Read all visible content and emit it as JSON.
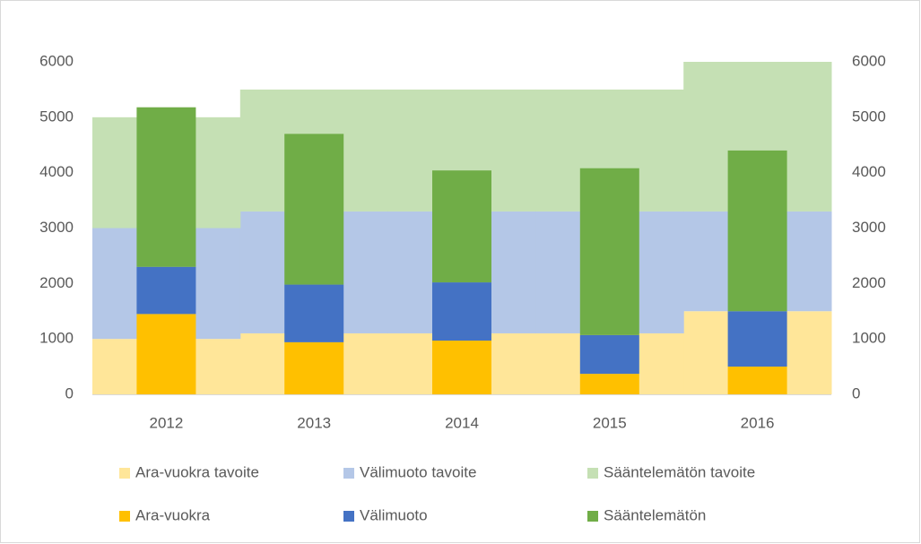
{
  "chart_data": {
    "type": "bar",
    "stacked": true,
    "categories": [
      "2012",
      "2013",
      "2014",
      "2015",
      "2016"
    ],
    "series": [
      {
        "name": "Ara-vuokra tavoite",
        "type": "area",
        "color": "#ffe699",
        "values": [
          1000,
          1100,
          1100,
          1100,
          1500
        ]
      },
      {
        "name": "Välimuoto tavoite",
        "type": "area",
        "color": "#b4c7e7",
        "values": [
          2000,
          2200,
          2200,
          2200,
          1800
        ]
      },
      {
        "name": "Sääntelemätön tavoite",
        "type": "area",
        "color": "#c5e0b4",
        "values": [
          2000,
          2200,
          2200,
          2200,
          2700
        ]
      },
      {
        "name": "Ara-vuokra",
        "type": "bar",
        "color": "#ffc000",
        "values": [
          1450,
          940,
          970,
          370,
          500
        ]
      },
      {
        "name": "Välimuoto",
        "type": "bar",
        "color": "#4472c4",
        "values": [
          850,
          1040,
          1050,
          700,
          1000
        ]
      },
      {
        "name": "Sääntelemätön",
        "type": "bar",
        "color": "#70ad47",
        "values": [
          2880,
          2720,
          2020,
          3010,
          2900
        ]
      }
    ],
    "ylim": [
      0,
      6000
    ],
    "yticks": [
      0,
      1000,
      2000,
      3000,
      4000,
      5000,
      6000
    ],
    "y2lim": [
      0,
      6000
    ],
    "y2ticks": [
      0,
      1000,
      2000,
      3000,
      4000,
      5000,
      6000
    ],
    "legend": "bottom"
  }
}
